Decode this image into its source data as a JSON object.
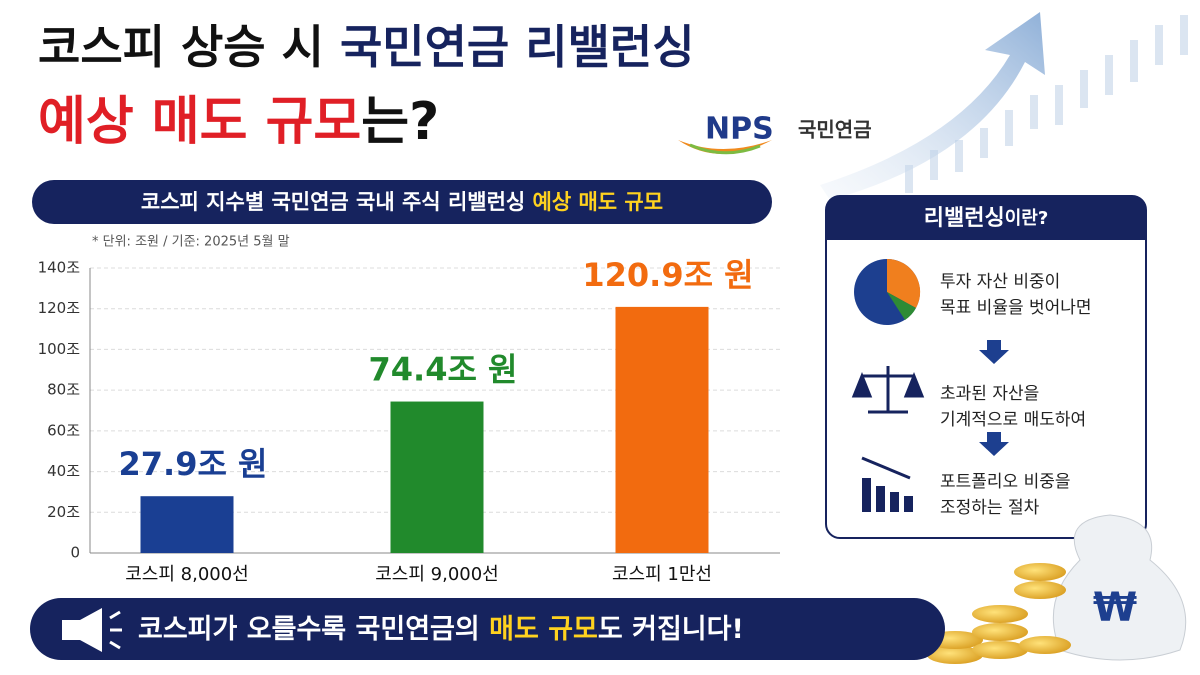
{
  "header": {
    "title_line1": [
      "코스피 상승 시 ",
      "국민연금 리밸런싱"
    ],
    "title_line2": [
      "예상 매도 규모",
      "는?"
    ],
    "logo": "NPS",
    "logo_text": "국민연금"
  },
  "chart_data": {
    "type": "bar",
    "title": [
      "코스피 지수별 국민연금 국내 주식 리밸런싱 ",
      "예상 매도 규모"
    ],
    "note": "* 단위: 조원 / 기준: 2025년 5월 말",
    "categories": [
      "코스피 8,000선",
      "코스피 9,000선",
      "코스피 1만선"
    ],
    "values": [
      27.9,
      74.4,
      120.9
    ],
    "value_labels": [
      "27.9조 원",
      "74.4조 원",
      "120.9조 원"
    ],
    "colors": [
      "#1a3f93",
      "#218a2c",
      "#f26b0f"
    ],
    "ylim": [
      0,
      140
    ],
    "yticks": [
      0,
      {
        "value": 20,
        "label": "20조"
      },
      {
        "value": 40,
        "label": "40조"
      },
      {
        "value": 60,
        "label": "60조"
      },
      {
        "value": 80,
        "label": "80조"
      },
      {
        "value": 100,
        "label": "100조"
      },
      {
        "value": 120,
        "label": "120조"
      },
      {
        "value": 140,
        "label": "140조"
      }
    ],
    "grid": true
  },
  "sidebar": {
    "title": [
      "리밸런싱",
      "이란?"
    ],
    "steps": [
      [
        "투자 자산 비중이",
        "목표 비율을 벗어나면"
      ],
      [
        "초과된 자산을",
        "기계적으로 매도하여"
      ],
      [
        "포트폴리오 비중을",
        "조정하는 절차"
      ]
    ]
  },
  "banner": [
    "코스피가 오를수록 국민연금의 ",
    "매도 규모",
    "도 커집니다!"
  ]
}
